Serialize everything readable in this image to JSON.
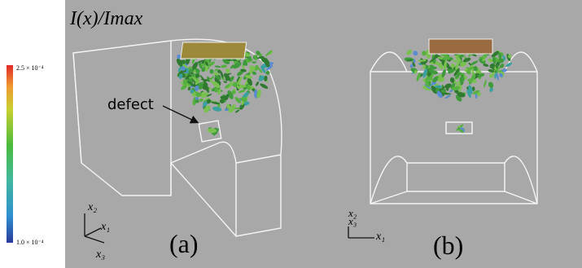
{
  "title": "I(x)/Imax",
  "colorbar": {
    "max_label": "2.5 × 10⁻⁴",
    "min_label": "1.0 × 10⁻⁴"
  },
  "panels": [
    {
      "label": "(a)",
      "annotation": "defect",
      "axes": {
        "x1": "x₁",
        "x2": "x₂",
        "x3": "x₃"
      }
    },
    {
      "label": "(b)",
      "axes": {
        "x1": "x₁",
        "x2": "x₂",
        "x3": "x₃"
      }
    }
  ]
}
